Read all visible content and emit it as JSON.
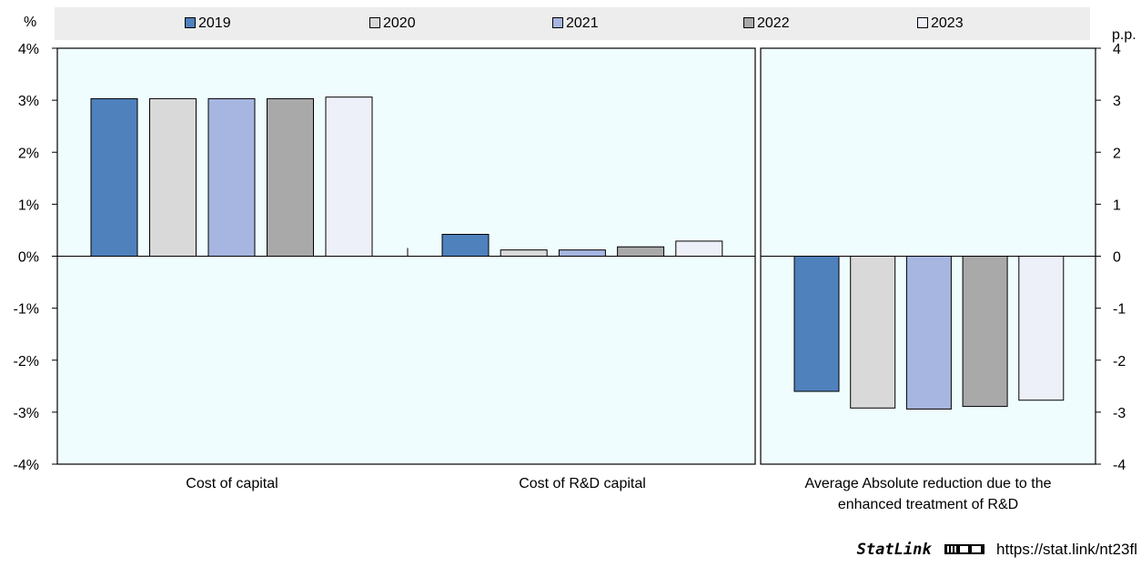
{
  "chart_data": {
    "type": "bar",
    "panels": [
      {
        "categories": [
          "Cost of capital",
          "Cost of R&D capital"
        ],
        "y_unit": "%",
        "ylim": [
          -4,
          4
        ],
        "yticks": [
          "-4%",
          "-3%",
          "-2%",
          "-1%",
          "0%",
          "1%",
          "2%",
          "3%",
          "4%"
        ],
        "series": [
          {
            "name": "2019",
            "values": [
              3.03,
              0.42
            ]
          },
          {
            "name": "2020",
            "values": [
              3.03,
              0.12
            ]
          },
          {
            "name": "2021",
            "values": [
              3.03,
              0.12
            ]
          },
          {
            "name": "2022",
            "values": [
              3.03,
              0.18
            ]
          },
          {
            "name": "2023",
            "values": [
              3.06,
              0.29
            ]
          }
        ]
      },
      {
        "categories": [
          "Average Absolute reduction due to the enhanced treatment of R&D"
        ],
        "category_lines": [
          "Average Absolute reduction due to the",
          "enhanced treatment of R&D"
        ],
        "y_unit": "p.p.",
        "ylim": [
          -4,
          4
        ],
        "yticks": [
          "-4",
          "-3",
          "-2",
          "-1",
          "0",
          "1",
          "2",
          "3",
          "4"
        ],
        "series": [
          {
            "name": "2019",
            "values": [
              -2.6
            ]
          },
          {
            "name": "2020",
            "values": [
              -2.92
            ]
          },
          {
            "name": "2021",
            "values": [
              -2.94
            ]
          },
          {
            "name": "2022",
            "values": [
              -2.89
            ]
          },
          {
            "name": "2023",
            "values": [
              -2.77
            ]
          }
        ]
      }
    ],
    "legend": [
      {
        "name": "2019",
        "color": "#4f81bd"
      },
      {
        "name": "2020",
        "color": "#d9d9d9"
      },
      {
        "name": "2021",
        "color": "#a6b6e1"
      },
      {
        "name": "2022",
        "color": "#a9a9a9"
      },
      {
        "name": "2023",
        "color": "#edf0f8"
      }
    ],
    "legend_position": "top",
    "plot_background": "#f0fdfe",
    "grid": false
  },
  "units": {
    "left": "%",
    "right": "p.p."
  },
  "statlink": {
    "brand": "StatLink",
    "url": "https://stat.link/nt23fl"
  }
}
